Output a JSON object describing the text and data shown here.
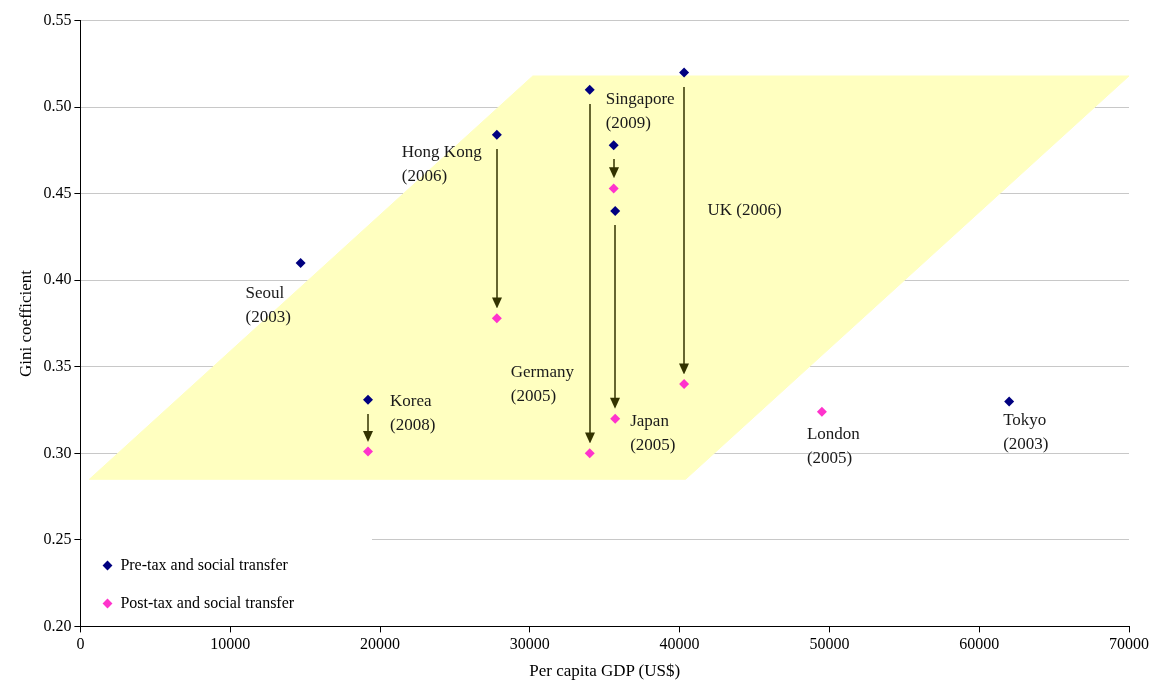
{
  "chart_data": {
    "type": "scatter",
    "xlabel": "Per capita GDP (US$)",
    "ylabel": "Gini coefficient",
    "xlim": [
      0,
      70000
    ],
    "xticks": [
      0,
      10000,
      20000,
      30000,
      40000,
      50000,
      60000,
      70000
    ],
    "ylim": [
      0.2,
      0.55
    ],
    "yticks": [
      {
        "value": 0.2,
        "label": "0.20"
      },
      {
        "value": 0.25,
        "label": "0.25"
      },
      {
        "value": 0.3,
        "label": "0.30"
      },
      {
        "value": 0.35,
        "label": "0.35"
      },
      {
        "value": 0.4,
        "label": "0.40"
      },
      {
        "value": 0.45,
        "label": "0.45"
      },
      {
        "value": 0.5,
        "label": "0.50"
      },
      {
        "value": 0.55,
        "label": "0.55"
      }
    ],
    "grid": "y",
    "legend": "bottom left",
    "marker": "diamond",
    "series": [
      {
        "name": "Pre-tax and social transfer",
        "color": "#000080",
        "x": [
          14700,
          19200,
          27800,
          34000,
          35600,
          35700,
          40300,
          62000
        ],
        "values": [
          0.41,
          0.331,
          0.484,
          0.51,
          0.478,
          0.44,
          0.52,
          0.33
        ]
      },
      {
        "name": "Post-tax and social transfer",
        "color": "#ff33cc",
        "x": [
          19200,
          27800,
          34000,
          35600,
          35700,
          40300,
          49500
        ],
        "values": [
          0.301,
          0.378,
          0.3,
          0.453,
          0.32,
          0.34,
          0.324
        ]
      },
      {
        "type": "area",
        "color": "#ffffc0",
        "marker": "none",
        "x": [
          600,
          30200,
          70000,
          40400,
          600
        ],
        "values": [
          0.285,
          0.518,
          0.518,
          0.285,
          0.285
        ]
      }
    ],
    "annotations": [
      {
        "text": "Seoul\n(2003)",
        "x": 14700,
        "y": 0.41
      },
      {
        "text": "Hong Kong\n(2006)",
        "x": 27800,
        "y": 0.484
      },
      {
        "text": "Singapore\n(2009)",
        "x": 35600,
        "y": 0.478
      },
      "UK (2006)",
      {
        "text": "Germany\n(2005)",
        "x": 34000,
        "y": 0.3
      },
      {
        "text": "Korea\n(2008)",
        "x": 19200,
        "y": 0.331
      },
      {
        "text": "Japan\n(2005)",
        "x": 35700,
        "y": 0.32
      },
      {
        "text": "London\n(2005)",
        "x": 49500,
        "y": 0.324
      },
      {
        "text": "Tokyo\n(2003)",
        "x": 62000,
        "y": 0.33
      }
    ]
  }
}
